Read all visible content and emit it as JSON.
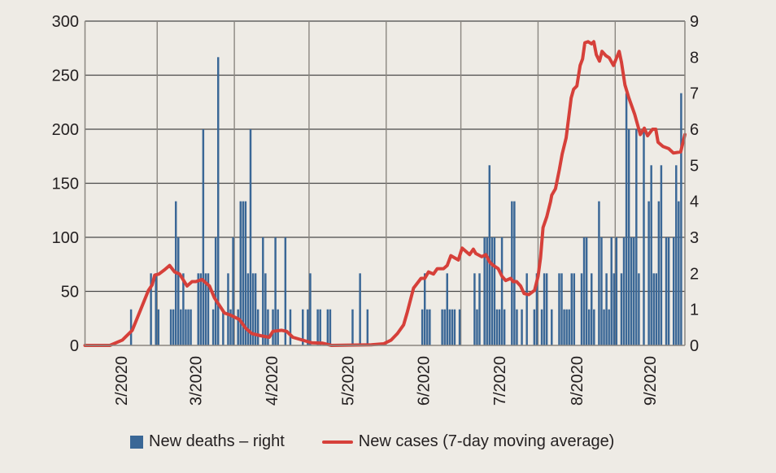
{
  "chart_data": {
    "type": "bar+line",
    "start_date": "2020-02-01",
    "num_days": 241,
    "x_tick_labels": [
      "2/2020",
      "3/2020",
      "4/2020",
      "5/2020",
      "6/2020",
      "7/2020",
      "8/2020",
      "9/2020"
    ],
    "month_start_days": [
      0,
      29,
      60,
      90,
      121,
      151,
      182,
      213,
      241
    ],
    "y_left": {
      "range": [
        0,
        300
      ],
      "ticks": [
        "0",
        "50",
        "100",
        "150",
        "200",
        "250",
        "300"
      ]
    },
    "y_right": {
      "range": [
        0,
        9
      ],
      "ticks": [
        "0",
        "1",
        "2",
        "3",
        "4",
        "5",
        "6",
        "7",
        "8",
        "9"
      ]
    },
    "grid": true,
    "legend_position": "bottom",
    "colors": {
      "bars": "#3a6796",
      "line": "#d6403a",
      "grid": "#555555",
      "background": "#eeebe5"
    },
    "series": [
      {
        "name": "New deaths – right",
        "type": "bar",
        "axis": "right",
        "points_day_value": [
          [
            18,
            1
          ],
          [
            26,
            2
          ],
          [
            28,
            2
          ],
          [
            29,
            1
          ],
          [
            34,
            1
          ],
          [
            35,
            1
          ],
          [
            36,
            4
          ],
          [
            37,
            3
          ],
          [
            38,
            1
          ],
          [
            39,
            2
          ],
          [
            40,
            1
          ],
          [
            41,
            1
          ],
          [
            42,
            1
          ],
          [
            45,
            2
          ],
          [
            46,
            2
          ],
          [
            47,
            6
          ],
          [
            48,
            2
          ],
          [
            49,
            2
          ],
          [
            51,
            1
          ],
          [
            52,
            3
          ],
          [
            53,
            8
          ],
          [
            55,
            1
          ],
          [
            57,
            2
          ],
          [
            58,
            1
          ],
          [
            59,
            3
          ],
          [
            61,
            1
          ],
          [
            62,
            4
          ],
          [
            63,
            4
          ],
          [
            64,
            4
          ],
          [
            65,
            2
          ],
          [
            66,
            6
          ],
          [
            67,
            2
          ],
          [
            68,
            2
          ],
          [
            69,
            1
          ],
          [
            71,
            3
          ],
          [
            72,
            2
          ],
          [
            73,
            1
          ],
          [
            75,
            1
          ],
          [
            76,
            3
          ],
          [
            77,
            1
          ],
          [
            80,
            3
          ],
          [
            82,
            1
          ],
          [
            87,
            1
          ],
          [
            89,
            1
          ],
          [
            90,
            2
          ],
          [
            93,
            1
          ],
          [
            94,
            1
          ],
          [
            97,
            1
          ],
          [
            98,
            1
          ],
          [
            107,
            1
          ],
          [
            110,
            2
          ],
          [
            113,
            1
          ],
          [
            135,
            1
          ],
          [
            136,
            2
          ],
          [
            137,
            1
          ],
          [
            138,
            1
          ],
          [
            143,
            1
          ],
          [
            144,
            1
          ],
          [
            145,
            2
          ],
          [
            146,
            1
          ],
          [
            147,
            1
          ],
          [
            148,
            1
          ],
          [
            150,
            1
          ],
          [
            156,
            2
          ],
          [
            157,
            1
          ],
          [
            158,
            2
          ],
          [
            160,
            3
          ],
          [
            161,
            3
          ],
          [
            162,
            5
          ],
          [
            163,
            3
          ],
          [
            164,
            3
          ],
          [
            165,
            1
          ],
          [
            166,
            1
          ],
          [
            167,
            3
          ],
          [
            168,
            1
          ],
          [
            171,
            4
          ],
          [
            172,
            4
          ],
          [
            173,
            1
          ],
          [
            175,
            1
          ],
          [
            177,
            2
          ],
          [
            180,
            1
          ],
          [
            181,
            2
          ],
          [
            183,
            1
          ],
          [
            184,
            2
          ],
          [
            185,
            2
          ],
          [
            187,
            1
          ],
          [
            190,
            2
          ],
          [
            191,
            2
          ],
          [
            192,
            1
          ],
          [
            193,
            1
          ],
          [
            194,
            1
          ],
          [
            195,
            2
          ],
          [
            196,
            2
          ],
          [
            199,
            2
          ],
          [
            200,
            3
          ],
          [
            201,
            3
          ],
          [
            202,
            1
          ],
          [
            203,
            2
          ],
          [
            204,
            1
          ],
          [
            206,
            4
          ],
          [
            207,
            3
          ],
          [
            208,
            1
          ],
          [
            209,
            2
          ],
          [
            210,
            1
          ],
          [
            211,
            3
          ],
          [
            212,
            2
          ],
          [
            213,
            3
          ],
          [
            215,
            2
          ],
          [
            216,
            3
          ],
          [
            217,
            7
          ],
          [
            218,
            6
          ],
          [
            219,
            3
          ],
          [
            220,
            3
          ],
          [
            221,
            6
          ],
          [
            222,
            2
          ],
          [
            224,
            6
          ],
          [
            226,
            4
          ],
          [
            227,
            5
          ],
          [
            228,
            2
          ],
          [
            229,
            2
          ],
          [
            230,
            4
          ],
          [
            231,
            5
          ],
          [
            233,
            3
          ],
          [
            234,
            3
          ],
          [
            236,
            3
          ],
          [
            237,
            5
          ],
          [
            238,
            4
          ],
          [
            239,
            7
          ]
        ]
      },
      {
        "name": "New cases (7-day moving average)",
        "type": "line",
        "axis": "left",
        "points_day_value": [
          [
            0,
            0
          ],
          [
            10,
            0
          ],
          [
            15,
            5
          ],
          [
            19,
            14
          ],
          [
            22.5,
            34
          ],
          [
            25.5,
            51
          ],
          [
            27,
            56
          ],
          [
            28,
            65
          ],
          [
            29.7,
            66
          ],
          [
            32,
            70
          ],
          [
            34,
            74
          ],
          [
            36,
            68
          ],
          [
            38,
            66
          ],
          [
            41,
            55
          ],
          [
            43,
            59
          ],
          [
            44.5,
            59
          ],
          [
            47,
            61
          ],
          [
            50,
            55
          ],
          [
            52,
            44
          ],
          [
            56,
            30
          ],
          [
            58.5,
            28
          ],
          [
            62,
            24
          ],
          [
            64.5,
            16
          ],
          [
            67,
            11
          ],
          [
            70.5,
            9
          ],
          [
            74,
            7.5
          ],
          [
            75.5,
            13
          ],
          [
            79,
            14
          ],
          [
            81,
            13
          ],
          [
            83.5,
            7.5
          ],
          [
            88,
            4.5
          ],
          [
            91,
            2.5
          ],
          [
            95.5,
            2
          ],
          [
            99,
            0
          ],
          [
            115,
            0.5
          ],
          [
            120,
            1.5
          ],
          [
            123,
            5
          ],
          [
            125.5,
            11
          ],
          [
            128,
            19
          ],
          [
            129.5,
            31
          ],
          [
            132,
            53
          ],
          [
            135,
            62
          ],
          [
            136.5,
            62
          ],
          [
            138,
            68
          ],
          [
            140,
            66
          ],
          [
            141.5,
            71
          ],
          [
            144,
            71
          ],
          [
            145.5,
            74
          ],
          [
            147,
            83
          ],
          [
            150,
            79
          ],
          [
            151.5,
            90
          ],
          [
            154.5,
            84
          ],
          [
            156,
            89
          ],
          [
            157,
            85
          ],
          [
            159.4,
            82
          ],
          [
            161,
            84
          ],
          [
            162.6,
            77
          ],
          [
            164,
            74
          ],
          [
            166,
            71
          ],
          [
            167.5,
            64
          ],
          [
            169,
            60
          ],
          [
            171,
            62
          ],
          [
            172,
            59
          ],
          [
            173.4,
            59
          ],
          [
            175,
            55
          ],
          [
            176.4,
            48
          ],
          [
            178.3,
            47
          ],
          [
            180.6,
            51
          ],
          [
            182,
            64
          ],
          [
            183,
            81
          ],
          [
            184,
            109
          ],
          [
            185.5,
            119
          ],
          [
            187,
            133
          ],
          [
            187.5,
            139
          ],
          [
            189,
            145
          ],
          [
            190.5,
            162
          ],
          [
            191.7,
            177
          ],
          [
            193.3,
            192
          ],
          [
            195.3,
            229
          ],
          [
            196.3,
            237
          ],
          [
            197.6,
            240
          ],
          [
            198.9,
            259
          ],
          [
            199.9,
            265
          ],
          [
            200.8,
            280
          ],
          [
            202.1,
            281
          ],
          [
            203.5,
            279
          ],
          [
            204.4,
            281
          ],
          [
            205.4,
            269
          ],
          [
            206.7,
            263
          ],
          [
            207.7,
            272
          ],
          [
            209.3,
            268
          ],
          [
            210.6,
            266
          ],
          [
            212.3,
            259
          ],
          [
            214.6,
            272
          ],
          [
            215.5,
            262
          ],
          [
            216.9,
            241
          ],
          [
            218.5,
            229
          ],
          [
            220.8,
            214
          ],
          [
            223.1,
            195
          ],
          [
            224.7,
            201
          ],
          [
            226,
            194
          ],
          [
            228,
            200
          ],
          [
            229.3,
            200
          ],
          [
            230.2,
            188
          ],
          [
            232.2,
            184
          ],
          [
            234.5,
            182
          ],
          [
            236.4,
            178
          ],
          [
            239.3,
            179
          ],
          [
            241,
            195
          ]
        ]
      }
    ]
  },
  "legend": {
    "deaths_label": "New deaths – right",
    "cases_label": "New cases (7-day moving average)"
  }
}
